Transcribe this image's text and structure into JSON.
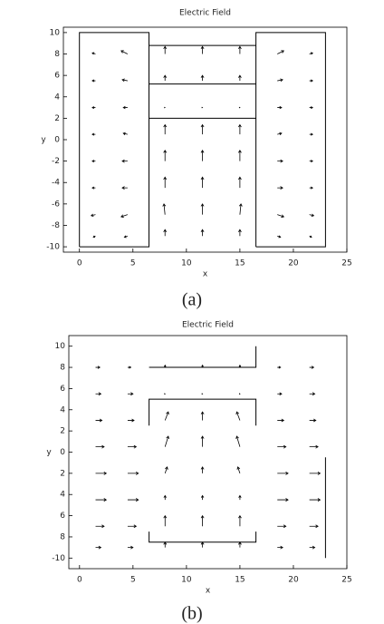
{
  "chart_data": [
    {
      "type": "quiver",
      "title": "Electric Field",
      "xlabel": "x",
      "ylabel": "y",
      "caption": "(a)",
      "xlim": [
        -1.5,
        25
      ],
      "ylim": [
        -10.5,
        10.5
      ],
      "xticks": [
        0,
        5,
        10,
        15,
        20,
        25
      ],
      "yticks": [
        -10,
        -8,
        -6,
        -4,
        -2,
        0,
        2,
        4,
        6,
        8,
        10
      ],
      "color": "#000000",
      "grid_x": [
        1.5,
        4.5,
        8,
        11.5,
        15,
        18.5,
        21.5
      ],
      "grid_y": [
        8,
        5.5,
        3,
        0.5,
        -2,
        -4.5,
        -7,
        -9
      ],
      "u": [
        [
          -0.3,
          -0.6,
          0,
          0,
          0,
          0.6,
          0.3
        ],
        [
          -0.3,
          -0.5,
          0,
          0,
          0,
          0.5,
          0.3
        ],
        [
          -0.3,
          -0.4,
          0,
          0,
          0,
          0.4,
          0.3
        ],
        [
          -0.3,
          -0.4,
          0,
          0,
          0,
          0.4,
          0.3
        ],
        [
          -0.3,
          -0.5,
          0,
          0,
          0,
          0.5,
          0.3
        ],
        [
          -0.3,
          -0.5,
          0,
          0,
          0,
          0.5,
          0.3
        ],
        [
          -0.4,
          -0.6,
          -0.1,
          0,
          0.1,
          0.6,
          0.4
        ],
        [
          -0.2,
          -0.3,
          0,
          0,
          0,
          0.3,
          0.2
        ]
      ],
      "v": [
        [
          0.1,
          0.3,
          0.7,
          0.7,
          0.7,
          0.3,
          0.1
        ],
        [
          0,
          0.1,
          0.5,
          0.5,
          0.5,
          0.1,
          0
        ],
        [
          0,
          0,
          0,
          0,
          0,
          0,
          0
        ],
        [
          0,
          0.1,
          0.9,
          0.9,
          0.9,
          0.1,
          0
        ],
        [
          0,
          0,
          1,
          1,
          1,
          0,
          0
        ],
        [
          0,
          0,
          1,
          1,
          1,
          0,
          0
        ],
        [
          -0.1,
          -0.2,
          1,
          1,
          1,
          -0.2,
          -0.1
        ],
        [
          -0.1,
          -0.1,
          0.6,
          0.6,
          0.6,
          -0.1,
          -0.1
        ]
      ],
      "outline": {
        "x": [
          0,
          0,
          6.5,
          6.5,
          0,
          null,
          16.5,
          16.5,
          23,
          23,
          16.5,
          null,
          6.5,
          16.5,
          null,
          6.5,
          16.5,
          null,
          6.5,
          16.5
        ],
        "y": [
          -10,
          10,
          10,
          -10,
          -10,
          null,
          -10,
          10,
          10,
          -10,
          -10,
          null,
          8.8,
          8.8,
          null,
          5.2,
          5.2,
          null,
          2,
          2
        ]
      }
    },
    {
      "type": "quiver",
      "title": "Electric Field",
      "xlabel": "x",
      "ylabel": "y",
      "caption": "(b)",
      "xlim": [
        -1,
        25
      ],
      "ylim": [
        -11,
        11
      ],
      "xticks": [
        0,
        5,
        10,
        15,
        20,
        25
      ],
      "yticks": [
        {
          "value": -10,
          "label": "-10"
        },
        {
          "value": -8,
          "label": "8"
        },
        {
          "value": -6,
          "label": "6"
        },
        {
          "value": -4,
          "label": "4"
        },
        {
          "value": -2,
          "label": "2"
        },
        0,
        2,
        4,
        6,
        8,
        10
      ],
      "color": "#000000",
      "grid_x": [
        1.5,
        4.5,
        8,
        11.5,
        15,
        18.5,
        21.5
      ],
      "grid_y": [
        8,
        5.5,
        3,
        0.5,
        -2,
        -4.5,
        -7,
        -9
      ],
      "u": [
        [
          0.4,
          0.3,
          0,
          0,
          0,
          0.3,
          0.4
        ],
        [
          0.5,
          0.5,
          0,
          0,
          0,
          0.4,
          0.5
        ],
        [
          0.6,
          0.6,
          0.3,
          0,
          -0.3,
          0.6,
          0.6
        ],
        [
          0.8,
          0.8,
          0.3,
          0,
          -0.3,
          0.8,
          0.8
        ],
        [
          1,
          1,
          0.2,
          0,
          -0.2,
          1,
          1
        ],
        [
          1,
          1,
          0,
          0,
          0,
          1,
          1
        ],
        [
          0.8,
          0.8,
          0,
          0,
          0,
          0.8,
          0.8
        ],
        [
          0.5,
          0.5,
          0,
          0,
          0,
          0.5,
          0.5
        ]
      ],
      "v": [
        [
          0,
          0,
          0.2,
          0.2,
          0.2,
          0,
          0
        ],
        [
          0,
          0,
          0,
          0,
          0,
          0,
          0
        ],
        [
          0,
          0,
          0.8,
          0.8,
          0.8,
          0,
          0
        ],
        [
          0,
          0,
          1,
          1,
          1,
          0,
          0
        ],
        [
          0,
          0,
          0.6,
          0.6,
          0.6,
          0,
          0
        ],
        [
          0,
          0,
          0.4,
          0.4,
          0.4,
          0,
          0
        ],
        [
          0,
          0,
          1,
          1,
          1,
          0,
          0
        ],
        [
          0,
          0,
          0.5,
          0.5,
          0.5,
          0,
          0
        ]
      ],
      "outline": {
        "x": [
          6.5,
          16.5,
          16.5,
          null,
          6.5,
          6.5,
          16.5,
          16.5,
          null,
          6.5,
          6.5,
          16.5,
          16.5,
          null,
          23,
          23
        ],
        "y": [
          8,
          8,
          10,
          null,
          2.5,
          5,
          5,
          2.5,
          null,
          -7.5,
          -8.5,
          -8.5,
          -7.5,
          null,
          -0.5,
          -10
        ]
      }
    }
  ]
}
